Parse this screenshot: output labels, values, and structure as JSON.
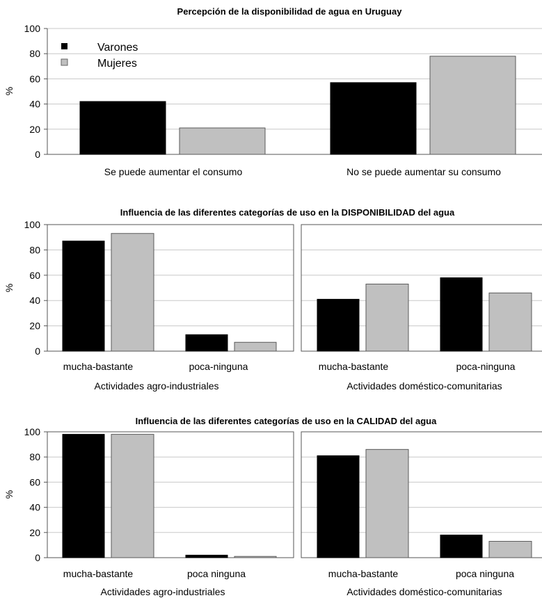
{
  "colors": {
    "varones": "#000000",
    "mujeres": "#c0c0c0",
    "grid": "#c8c8c8",
    "axis": "#555555"
  },
  "chart_data": [
    {
      "type": "bar",
      "title": "Percepción de la disponibilidad de agua en Uruguay",
      "ylabel": "%",
      "ylim": [
        0,
        100
      ],
      "yticks": [
        "0",
        "20",
        "40",
        "60",
        "80",
        "100"
      ],
      "grid": true,
      "legend": {
        "placement": "top-left",
        "entries": [
          "Varones",
          "Mujeres"
        ]
      },
      "categories": [
        "Se puede aumentar el consumo",
        "No se puede aumentar su consumo"
      ],
      "series": [
        {
          "name": "Varones",
          "values": [
            42,
            57
          ]
        },
        {
          "name": "Mujeres",
          "values": [
            21,
            78
          ]
        }
      ]
    },
    {
      "type": "bar",
      "title": "Influencia de las diferentes categorías de uso en la DISPONIBILIDAD del agua",
      "ylabel": "%",
      "ylim": [
        0,
        100
      ],
      "yticks": [
        "0",
        "20",
        "40",
        "60",
        "80",
        "100"
      ],
      "grid": true,
      "panels": [
        {
          "group_label": "Actividades agro-industriales",
          "categories": [
            "mucha-bastante",
            "poca-ninguna"
          ],
          "series": [
            {
              "name": "Varones",
              "values": [
                87,
                13
              ]
            },
            {
              "name": "Mujeres",
              "values": [
                93,
                7
              ]
            }
          ]
        },
        {
          "group_label": "Actividades doméstico-comunitarias",
          "categories": [
            "mucha-bastante",
            "poca-ninguna"
          ],
          "series": [
            {
              "name": "Varones",
              "values": [
                41,
                58
              ]
            },
            {
              "name": "Mujeres",
              "values": [
                53,
                46
              ]
            }
          ]
        }
      ]
    },
    {
      "type": "bar",
      "title": "Influencia de las diferentes categorías de uso en la CALIDAD del agua",
      "ylabel": "%",
      "ylim": [
        0,
        100
      ],
      "yticks": [
        "0",
        "20",
        "40",
        "60",
        "80",
        "100"
      ],
      "grid": true,
      "panels": [
        {
          "group_label": "Actividades agro-industriales",
          "categories": [
            "mucha-bastante",
            "poca ninguna"
          ],
          "series": [
            {
              "name": "Varones",
              "values": [
                98,
                2
              ]
            },
            {
              "name": "Mujeres",
              "values": [
                98,
                1
              ]
            }
          ]
        },
        {
          "group_label": "Actividades doméstico-comunitarias",
          "categories": [
            "mucha-bastante",
            "poca ninguna"
          ],
          "series": [
            {
              "name": "Varones",
              "values": [
                81,
                18
              ]
            },
            {
              "name": "Mujeres",
              "values": [
                86,
                13
              ]
            }
          ]
        }
      ]
    }
  ]
}
